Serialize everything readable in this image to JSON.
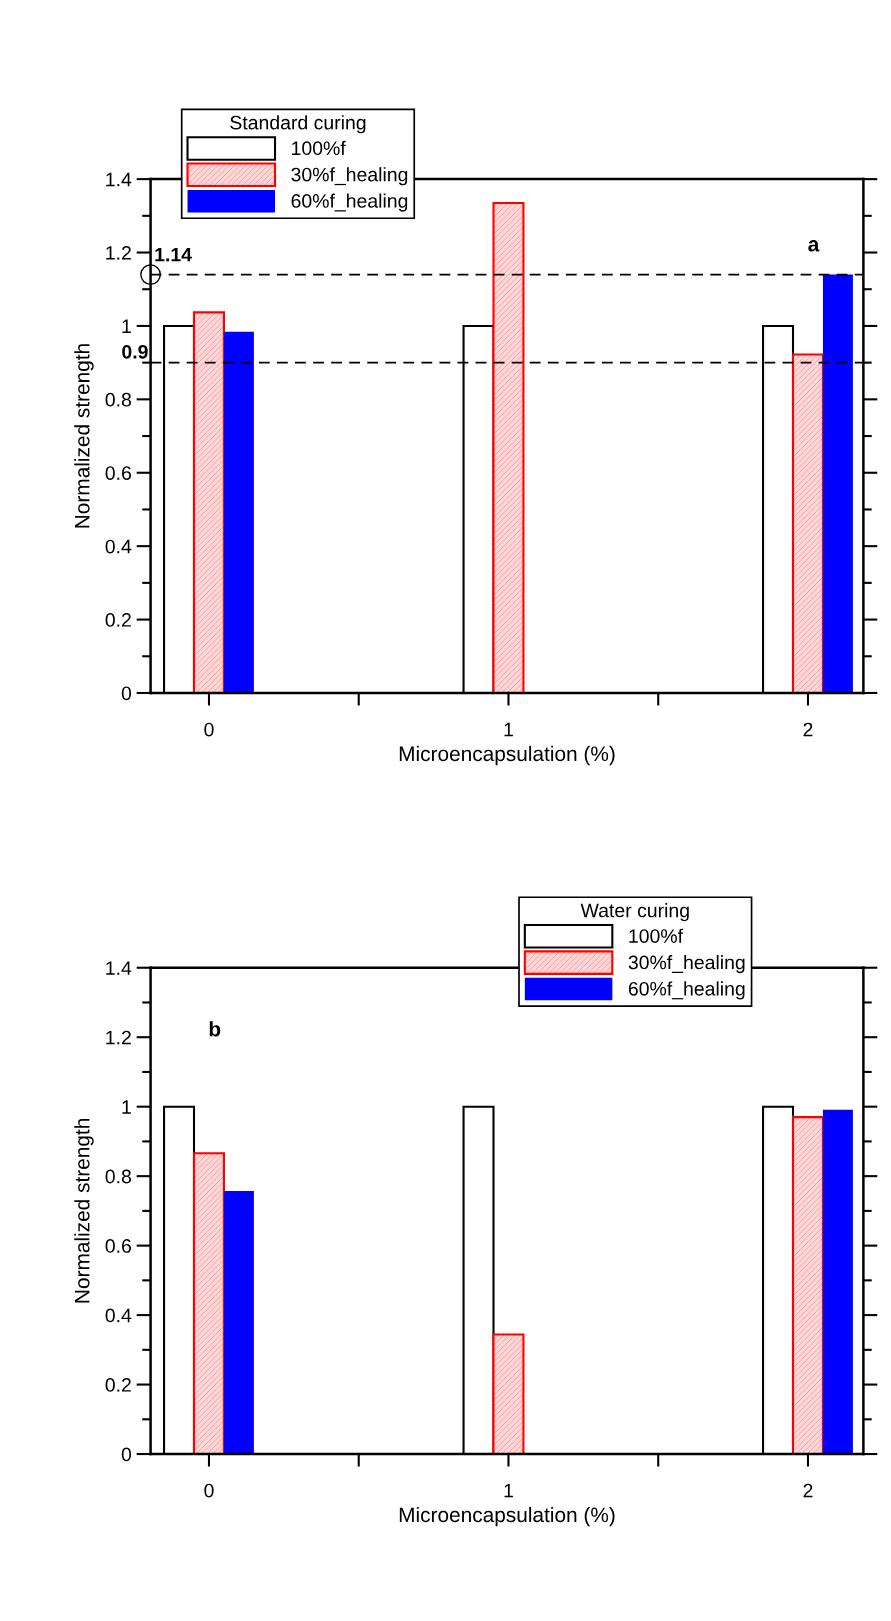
{
  "chart_data": [
    {
      "type": "bar",
      "xlabel": "Microencapsulation (%)",
      "ylabel": "Normalized strength",
      "legend_title": "Standard curing",
      "categories": [
        "0",
        "1",
        "2"
      ],
      "series": [
        {
          "name": "100%f",
          "color": "#ffffff",
          "values": [
            1,
            1,
            1
          ]
        },
        {
          "name": "30%f_healing",
          "color": "#ff0000",
          "values": [
            1.037,
            1.335,
            0.922
          ]
        },
        {
          "name": "60%f_healing",
          "color": "#0000ff",
          "values": [
            0.984,
            null,
            1.14
          ]
        }
      ],
      "ylim": [
        0,
        1.4
      ],
      "yticks": [
        0,
        0.2,
        0.4,
        0.6,
        0.8,
        1,
        1.2,
        1.4
      ],
      "ref_lines": [
        {
          "axis": "y",
          "value": 1.14,
          "label": "1.14",
          "line_style": "dashed",
          "color": "#000000"
        },
        {
          "axis": "y",
          "value": 0.9,
          "label": "0.9",
          "line_style": "dashed",
          "color": "#000000"
        }
      ],
      "annotations": [
        "a"
      ],
      "legend": "top left",
      "grid": false
    },
    {
      "type": "bar",
      "xlabel": "Microencapsulation (%)",
      "ylabel": "Normalized strength",
      "legend_title": "Water curing",
      "categories": [
        "0",
        "1",
        "2"
      ],
      "series": [
        {
          "name": "100%f",
          "color": "#ffffff",
          "values": [
            1,
            1,
            1
          ]
        },
        {
          "name": "30%f_healing",
          "color": "#ff0000",
          "values": [
            0.866,
            0.344,
            0.97
          ]
        },
        {
          "name": "60%f_healing",
          "color": "#0000ff",
          "values": [
            0.757,
            null,
            0.991
          ]
        }
      ],
      "ylim": [
        0,
        1.4
      ],
      "yticks": [
        0,
        0.2,
        0.4,
        0.6,
        0.8,
        1,
        1.2,
        1.4
      ],
      "annotations": [
        "b"
      ],
      "legend": "top",
      "grid": false
    }
  ]
}
